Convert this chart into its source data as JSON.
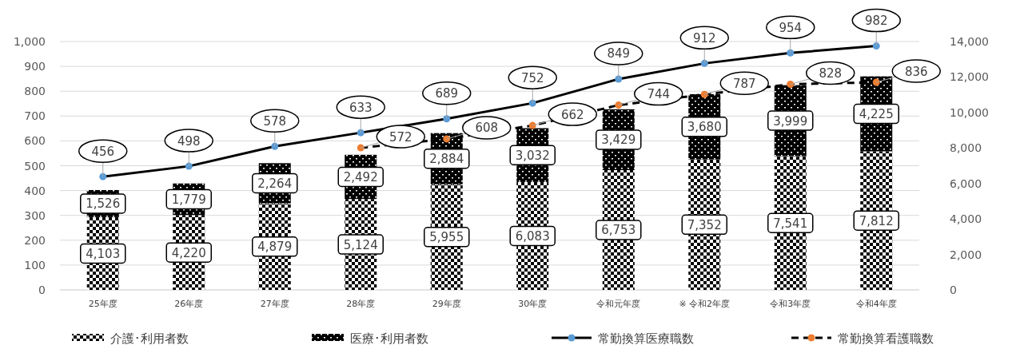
{
  "chart_data": {
    "type": "bar",
    "stacked": true,
    "categories": [
      "25年度",
      "26年度",
      "27年度",
      "28年度",
      "29年度",
      "30年度",
      "令和元年度",
      "※ 令和2年度",
      "令和3年度",
      "令和4年度"
    ],
    "series": [
      {
        "name": "介護･利用者数",
        "axis": "y2",
        "color": "#000000",
        "values": [
          4103,
          4220,
          4879,
          5124,
          5955,
          6083,
          6753,
          7352,
          7541,
          7812
        ],
        "value_labels": [
          "4,103",
          "4,220",
          "4,879",
          "5,124",
          "5,955",
          "6,083",
          "6,753",
          "7,352",
          "7,541",
          "7,812"
        ]
      },
      {
        "name": "医療･利用者数",
        "axis": "y2",
        "color": "#000000",
        "values": [
          1526,
          1779,
          2264,
          2492,
          2884,
          3032,
          3429,
          3680,
          3999,
          4225
        ],
        "value_labels": [
          "1,526",
          "1,779",
          "2,264",
          "2,492",
          "2,884",
          "3,032",
          "3,429",
          "3,680",
          "3,999",
          "4,225"
        ]
      },
      {
        "name": "常勤換算医療職数",
        "type": "line",
        "axis": "y",
        "color": "#5b9bd5",
        "marker": "circle",
        "line_style": "solid",
        "values": [
          456,
          498,
          578,
          633,
          689,
          752,
          849,
          912,
          954,
          982
        ]
      },
      {
        "name": "常勤換算看護職数",
        "type": "line",
        "axis": "y",
        "color": "#ed7d31",
        "marker": "circle",
        "line_style": "dashed",
        "values": [
          null,
          null,
          null,
          572,
          608,
          662,
          744,
          787,
          828,
          836
        ]
      }
    ],
    "ylim": [
      0,
      1000
    ],
    "yticks": [
      0,
      100,
      200,
      300,
      400,
      500,
      600,
      700,
      800,
      900,
      {
        "value": 1000,
        "label": "1,000"
      }
    ],
    "y2lim": [
      0,
      14000
    ],
    "y2ticks": [
      0,
      {
        "value": 2000,
        "label": "2,000"
      },
      {
        "value": 4000,
        "label": "4,000"
      },
      {
        "value": 6000,
        "label": "6,000"
      },
      {
        "value": 8000,
        "label": "8,000"
      },
      {
        "value": 10000,
        "label": "10,000"
      },
      {
        "value": 12000,
        "label": "12,000"
      },
      {
        "value": 14000,
        "label": "14,000"
      }
    ],
    "grid": "y",
    "legend": "bottom",
    "data_labels": true
  }
}
